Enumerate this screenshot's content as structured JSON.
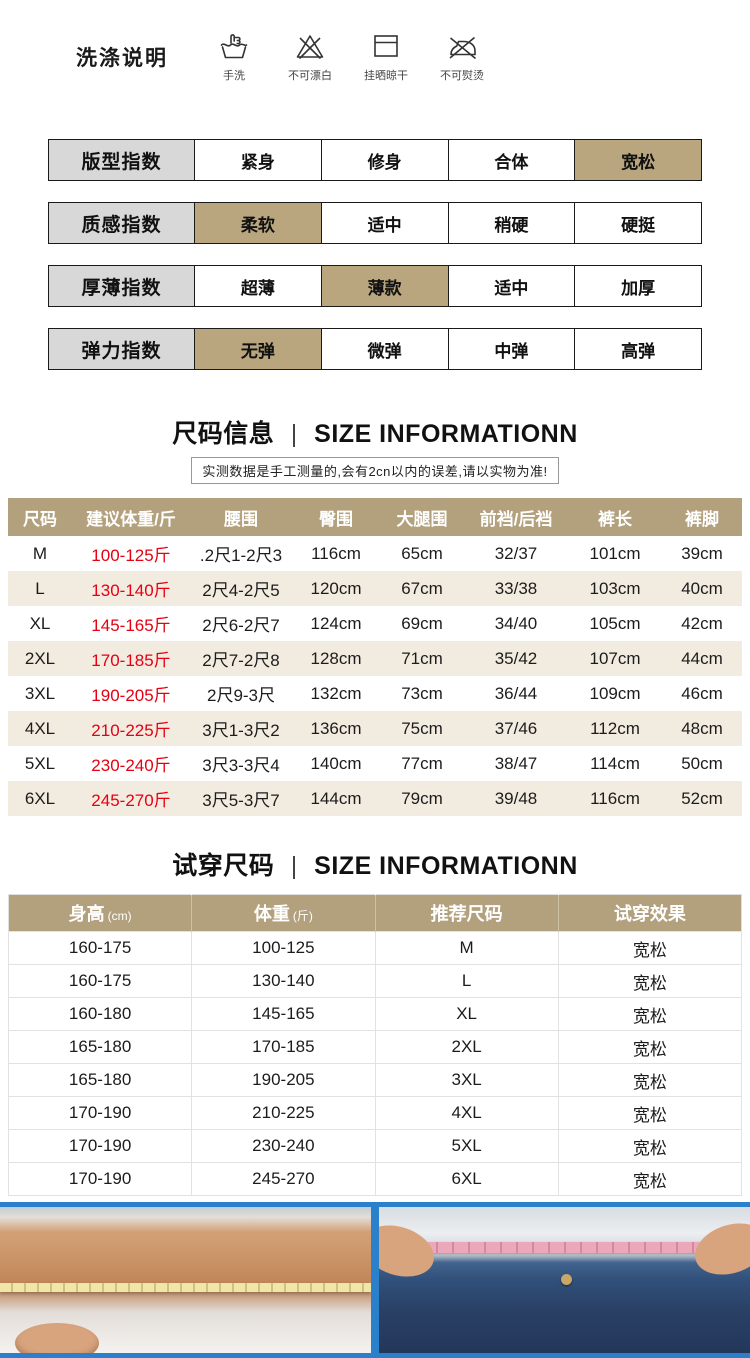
{
  "wash": {
    "title": "洗涤说明",
    "items": [
      {
        "icon": "hand-wash-icon",
        "label": "手洗"
      },
      {
        "icon": "no-bleach-icon",
        "label": "不可漂白"
      },
      {
        "icon": "hang-dry-icon",
        "label": "挂晒晾干"
      },
      {
        "icon": "no-iron-icon",
        "label": "不可熨烫"
      }
    ]
  },
  "index_rows": [
    {
      "label": "版型指数",
      "options": [
        "紧身",
        "修身",
        "合体",
        "宽松"
      ],
      "selected": 3
    },
    {
      "label": "质感指数",
      "options": [
        "柔软",
        "适中",
        "稍硬",
        "硬挺"
      ],
      "selected": 0
    },
    {
      "label": "厚薄指数",
      "options": [
        "超薄",
        "薄款",
        "适中",
        "加厚"
      ],
      "selected": 1
    },
    {
      "label": "弹力指数",
      "options": [
        "无弹",
        "微弹",
        "中弹",
        "高弹"
      ],
      "selected": 0
    }
  ],
  "size_section": {
    "title_cn": "尺码信息",
    "title_sep": "|",
    "title_en": "SIZE INFORMATIONN",
    "subtitle": "实测数据是手工测量的,会有2cn以内的误差,请以实物为准!",
    "table": {
      "headers": [
        "尺码",
        "建议体重/斤",
        "腰围",
        "臀围",
        "大腿围",
        "前裆/后裆",
        "裤长",
        "裤脚"
      ],
      "rows": [
        [
          "M",
          "100-125斤",
          ".2尺1-2尺3",
          "116cm",
          "65cm",
          "32/37",
          "101cm",
          "39cm"
        ],
        [
          "L",
          "130-140斤",
          "2尺4-2尺5",
          "120cm",
          "67cm",
          "33/38",
          "103cm",
          "40cm"
        ],
        [
          "XL",
          "145-165斤",
          "2尺6-2尺7",
          "124cm",
          "69cm",
          "34/40",
          "105cm",
          "42cm"
        ],
        [
          "2XL",
          "170-185斤",
          "2尺7-2尺8",
          "128cm",
          "71cm",
          "35/42",
          "107cm",
          "44cm"
        ],
        [
          "3XL",
          "190-205斤",
          "2尺9-3尺",
          "132cm",
          "73cm",
          "36/44",
          "109cm",
          "46cm"
        ],
        [
          "4XL",
          "210-225斤",
          "3尺1-3尺2",
          "136cm",
          "75cm",
          "37/46",
          "112cm",
          "48cm"
        ],
        [
          "5XL",
          "230-240斤",
          "3尺3-3尺4",
          "140cm",
          "77cm",
          "38/47",
          "114cm",
          "50cm"
        ],
        [
          "6XL",
          "245-270斤",
          "3尺5-3尺7",
          "144cm",
          "79cm",
          "39/48",
          "116cm",
          "52cm"
        ]
      ]
    }
  },
  "tryon_section": {
    "title_cn": "试穿尺码",
    "title_sep": "|",
    "title_en": "SIZE INFORMATIONN",
    "table": {
      "headers": [
        {
          "main": "身高",
          "sub": "(cm)"
        },
        {
          "main": "体重",
          "sub": "(斤)"
        },
        {
          "main": "推荐尺码",
          "sub": ""
        },
        {
          "main": "试穿效果",
          "sub": ""
        }
      ],
      "rows": [
        [
          "160-175",
          "100-125",
          "M",
          "宽松"
        ],
        [
          "160-175",
          "130-140",
          "L",
          "宽松"
        ],
        [
          "160-180",
          "145-165",
          "XL",
          "宽松"
        ],
        [
          "165-180",
          "170-185",
          "2XL",
          "宽松"
        ],
        [
          "165-180",
          "190-205",
          "3XL",
          "宽松"
        ],
        [
          "170-190",
          "210-225",
          "4XL",
          "宽松"
        ],
        [
          "170-190",
          "230-240",
          "5XL",
          "宽松"
        ],
        [
          "170-190",
          "245-270",
          "6XL",
          "宽松"
        ]
      ]
    }
  },
  "colors": {
    "accent_tan": "#b3a07d",
    "highlight_tan": "#b9a67f",
    "label_gray": "#d8d8d8",
    "row_beige": "#f2ebe0",
    "red_text": "#e60012",
    "photo_blue": "#2a80cb"
  }
}
